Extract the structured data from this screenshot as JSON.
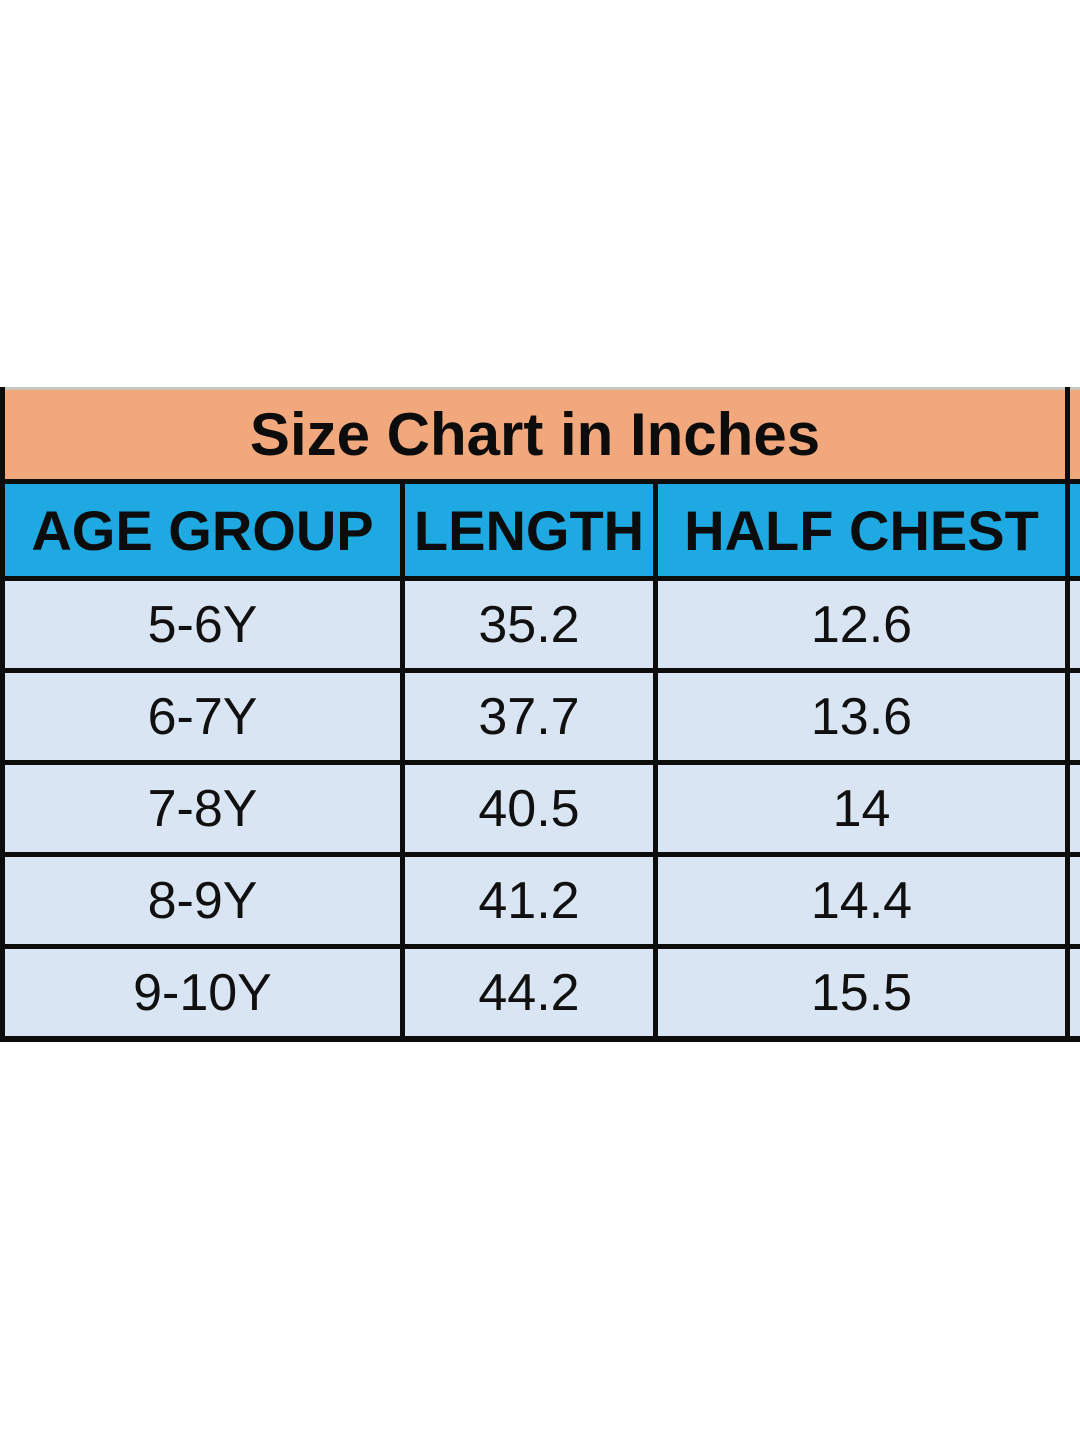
{
  "chart_data": {
    "type": "table",
    "title": "Size Chart in Inches",
    "columns": [
      "AGE GROUP",
      "LENGTH",
      "HALF CHEST"
    ],
    "rows": [
      [
        "5-6Y",
        "35.2",
        "12.6"
      ],
      [
        "6-7Y",
        "37.7",
        "13.6"
      ],
      [
        "7-8Y",
        "40.5",
        "14"
      ],
      [
        "8-9Y",
        "41.2",
        "14.4"
      ],
      [
        "9-10Y",
        "44.2",
        "15.5"
      ]
    ],
    "units": "inches",
    "colors": {
      "title_bg": "#f2a87d",
      "header_bg": "#1fa9e2",
      "row_bg": "#d9e5f2",
      "border": "#0d0d0d",
      "text": "#101010",
      "page_bg": "#ffffff"
    },
    "layout": {
      "grid": true,
      "right_edge_cut_off": true
    }
  }
}
